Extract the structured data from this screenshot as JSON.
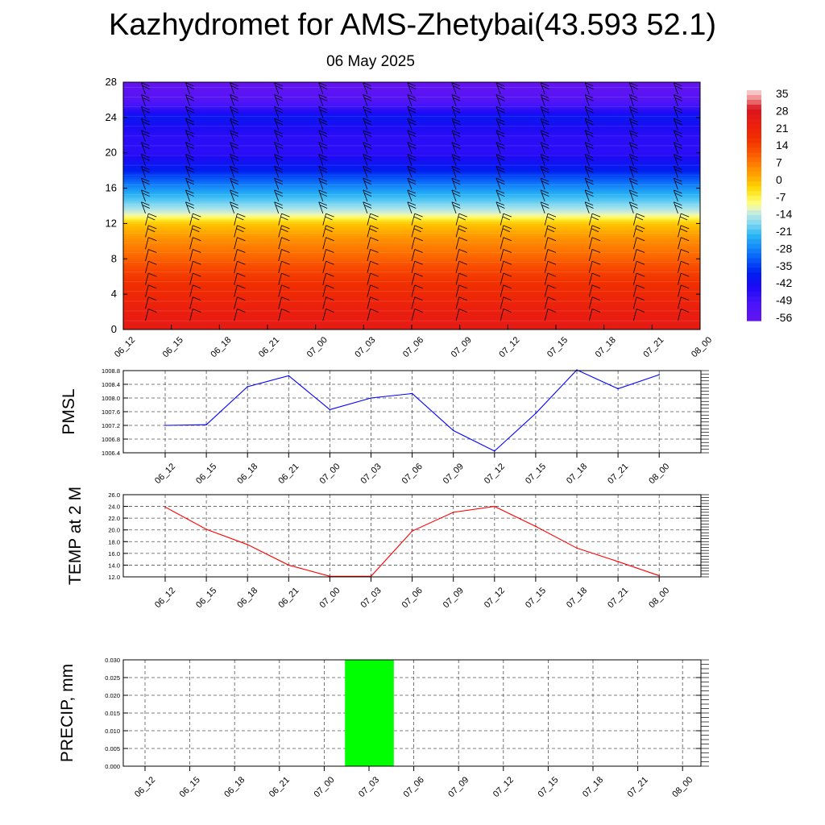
{
  "header": {
    "title": "Kazhydromet for AMS-Zhetybai(43.593 52.1)",
    "date": "06 May 2025"
  },
  "chart_data": [
    {
      "type": "heatmap",
      "x_categories": [
        "06_12",
        "06_15",
        "06_18",
        "06_21",
        "07_00",
        "07_03",
        "07_06",
        "07_09",
        "07_12",
        "07_15",
        "07_18",
        "07_21",
        "08_00"
      ],
      "y_ticks": [
        0,
        4,
        8,
        12,
        16,
        20,
        24,
        28
      ],
      "ylim": [
        0,
        28
      ],
      "colorbar": {
        "labels": [
          "35",
          "28",
          "21",
          "14",
          "7",
          "0",
          "-7",
          "-14",
          "-21",
          "-28",
          "-35",
          "-42",
          "-49",
          "-56"
        ],
        "range": [
          -60,
          38
        ]
      },
      "temperature_profile": {
        "levels": [
          0,
          2,
          4,
          6,
          8,
          10,
          12,
          13,
          14,
          16,
          18,
          20,
          22,
          24,
          26,
          28
        ],
        "values": [
          26,
          24,
          20,
          16,
          10,
          5,
          -2,
          -12,
          -18,
          -28,
          -40,
          -48,
          -48,
          -42,
          -56,
          -60
        ]
      },
      "colors": {
        "wind_barb": "#000000"
      }
    },
    {
      "type": "line",
      "ylabel": "PMSL",
      "x": [
        "06_12",
        "06_15",
        "06_18",
        "06_21",
        "07_00",
        "07_03",
        "07_06",
        "07_09",
        "07_12",
        "07_15",
        "07_18",
        "07_21",
        "08_00"
      ],
      "values": [
        1007.2,
        1007.22,
        1008.33,
        1008.65,
        1007.66,
        1008.0,
        1008.13,
        1007.05,
        1006.45,
        1007.55,
        1008.82,
        1008.27,
        1008.68
      ],
      "ylim": [
        1006.4,
        1008.8
      ],
      "y_ticks": [
        "1006.4",
        "1006.8",
        "1007.2",
        "1007.6",
        "1008.0",
        "1008.4",
        "1008.8"
      ],
      "grid": true,
      "colors": {
        "line": "#0000ff"
      }
    },
    {
      "type": "line",
      "ylabel": "TEMP at 2 M",
      "x": [
        "06_12",
        "06_15",
        "06_18",
        "06_21",
        "07_00",
        "07_03",
        "07_06",
        "07_09",
        "07_12",
        "07_15",
        "07_18",
        "07_21",
        "08_00"
      ],
      "values": [
        23.9,
        20.1,
        17.5,
        14.0,
        12.1,
        12.1,
        19.8,
        23.0,
        24.0,
        20.6,
        16.9,
        14.6,
        12.2
      ],
      "ylim": [
        12.0,
        26.0
      ],
      "y_ticks": [
        "12.0",
        "14.0",
        "16.0",
        "18.0",
        "20.0",
        "22.0",
        "24.0",
        "26.0"
      ],
      "grid": true,
      "colors": {
        "line": "#ff0000"
      }
    },
    {
      "type": "bar",
      "ylabel": "PRECIP, mm",
      "x": [
        "06_12",
        "06_15",
        "06_18",
        "06_21",
        "07_00",
        "07_03",
        "07_06",
        "07_09",
        "07_12",
        "07_15",
        "07_18",
        "07_21",
        "08_00"
      ],
      "values": [
        0,
        0,
        0,
        0,
        0,
        0.03,
        0,
        0,
        0,
        0,
        0,
        0,
        0
      ],
      "ylim": [
        0,
        0.03
      ],
      "y_ticks": [
        "0.000",
        "0.005",
        "0.010",
        "0.015",
        "0.020",
        "0.025",
        "0.030"
      ],
      "grid": true,
      "colors": {
        "bar": "#00ff00"
      }
    }
  ]
}
